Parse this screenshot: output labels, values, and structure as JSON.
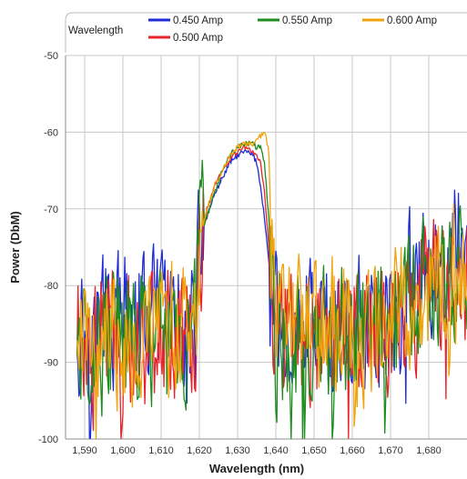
{
  "chart_data": {
    "type": "line",
    "title": "",
    "xlabel": "Wavelength (nm)",
    "ylabel": "Power (DbM)",
    "legend": {
      "title": "Wavelength",
      "placement": "top"
    },
    "xlim": [
      1585,
      1690
    ],
    "ylim": [
      -100,
      -50
    ],
    "xticks": [
      1590,
      1600,
      1610,
      1620,
      1630,
      1640,
      1650,
      1660,
      1670,
      1680
    ],
    "xtick_labels": [
      "1,590",
      "1,600",
      "1,610",
      "1,620",
      "1,630",
      "1,640",
      "1,650",
      "1,660",
      "1,670",
      "1,680"
    ],
    "yticks": [
      -50,
      -60,
      -70,
      -80,
      -90,
      -100
    ],
    "ytick_labels": [
      "-50",
      "-60",
      "-70",
      "-80",
      "-90",
      "-100"
    ],
    "grid": true,
    "series": [
      {
        "name": "0.450 Amp",
        "color": "#1f2bd6",
        "x": [
          1588,
          1595,
          1600,
          1605,
          1610,
          1615,
          1618,
          1619,
          1620,
          1621,
          1622,
          1624,
          1626,
          1628,
          1630,
          1632,
          1634,
          1635,
          1636,
          1637,
          1638,
          1639,
          1640,
          1650,
          1660,
          1670,
          1675,
          1680,
          1685,
          1690
        ],
        "y": [
          -85,
          -85,
          -85,
          -85,
          -85,
          -85,
          -85,
          -85,
          -76,
          -72,
          -71,
          -68,
          -66,
          -64,
          -63,
          -62.5,
          -63,
          -64,
          -67,
          -71,
          -76,
          -82,
          -85,
          -85,
          -85,
          -84,
          -80,
          -77,
          -76,
          -76
        ],
        "noise": 5
      },
      {
        "name": "0.500 Amp",
        "color": "#e8232a",
        "x": [
          1588,
          1595,
          1600,
          1605,
          1610,
          1615,
          1618,
          1619,
          1620,
          1621,
          1622,
          1624,
          1626,
          1628,
          1630,
          1632,
          1634,
          1635,
          1636,
          1637,
          1638,
          1639,
          1640,
          1650,
          1660,
          1670,
          1675,
          1680,
          1685,
          1690
        ],
        "y": [
          -86,
          -86,
          -86,
          -86,
          -86,
          -86,
          -86,
          -86,
          -76,
          -72,
          -70,
          -67,
          -65,
          -63.5,
          -62.5,
          -62,
          -62.5,
          -63,
          -64,
          -68,
          -74,
          -80,
          -86,
          -86,
          -86,
          -85,
          -82,
          -79,
          -78,
          -78
        ],
        "noise": 5
      },
      {
        "name": "0.550 Amp",
        "color": "#1e8c1e",
        "x": [
          1588,
          1595,
          1600,
          1605,
          1610,
          1615,
          1618,
          1619,
          1620,
          1621,
          1622,
          1624,
          1626,
          1628,
          1630,
          1632,
          1634,
          1635,
          1636,
          1637,
          1638,
          1639,
          1640,
          1650,
          1660,
          1670,
          1675,
          1680,
          1685,
          1690
        ],
        "y": [
          -87,
          -87,
          -87,
          -87,
          -87,
          -87,
          -87,
          -87,
          -77,
          -73,
          -71,
          -68,
          -65,
          -63,
          -62,
          -61.5,
          -61.5,
          -62,
          -62,
          -64,
          -70,
          -78,
          -87,
          -87,
          -87,
          -86,
          -83,
          -80,
          -79,
          -79
        ],
        "noise": 5
      },
      {
        "name": "0.600 Amp",
        "color": "#f0a30a",
        "x": [
          1588,
          1595,
          1600,
          1605,
          1610,
          1615,
          1618,
          1619,
          1620,
          1621,
          1622,
          1624,
          1626,
          1628,
          1630,
          1632,
          1634,
          1635,
          1636,
          1637,
          1638,
          1639,
          1640,
          1650,
          1660,
          1670,
          1675,
          1680,
          1685,
          1690
        ],
        "y": [
          -86,
          -86,
          -86,
          -86,
          -86,
          -86,
          -86,
          -86,
          -76,
          -72,
          -70,
          -67,
          -65,
          -63,
          -62,
          -61.5,
          -61.5,
          -61,
          -60.5,
          -60,
          -62,
          -68,
          -84,
          -86,
          -86,
          -85,
          -82,
          -80,
          -79,
          -79
        ],
        "noise": 5
      }
    ]
  }
}
